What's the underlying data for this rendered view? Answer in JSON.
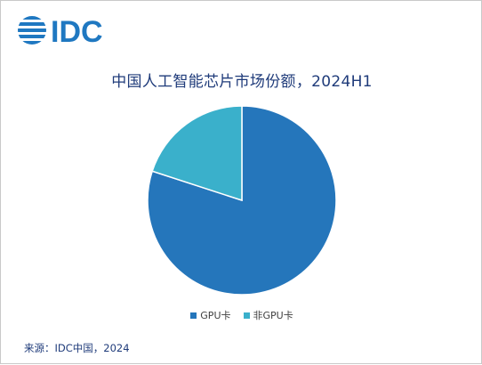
{
  "logo": {
    "text": "IDC",
    "color": "#1f78c1"
  },
  "chart_data": {
    "type": "pie",
    "title": "中国人工智能芯片市场份额，2024H1",
    "slices": [
      {
        "label": "GPU卡",
        "value": 80,
        "color": "#2576bb"
      },
      {
        "label": "非GPU卡",
        "value": 20,
        "color": "#3ab0cb"
      }
    ],
    "start_angle_deg": 0,
    "direction": "clockwise",
    "legend_position": "bottom"
  },
  "source": "来源：IDC中国，2024"
}
